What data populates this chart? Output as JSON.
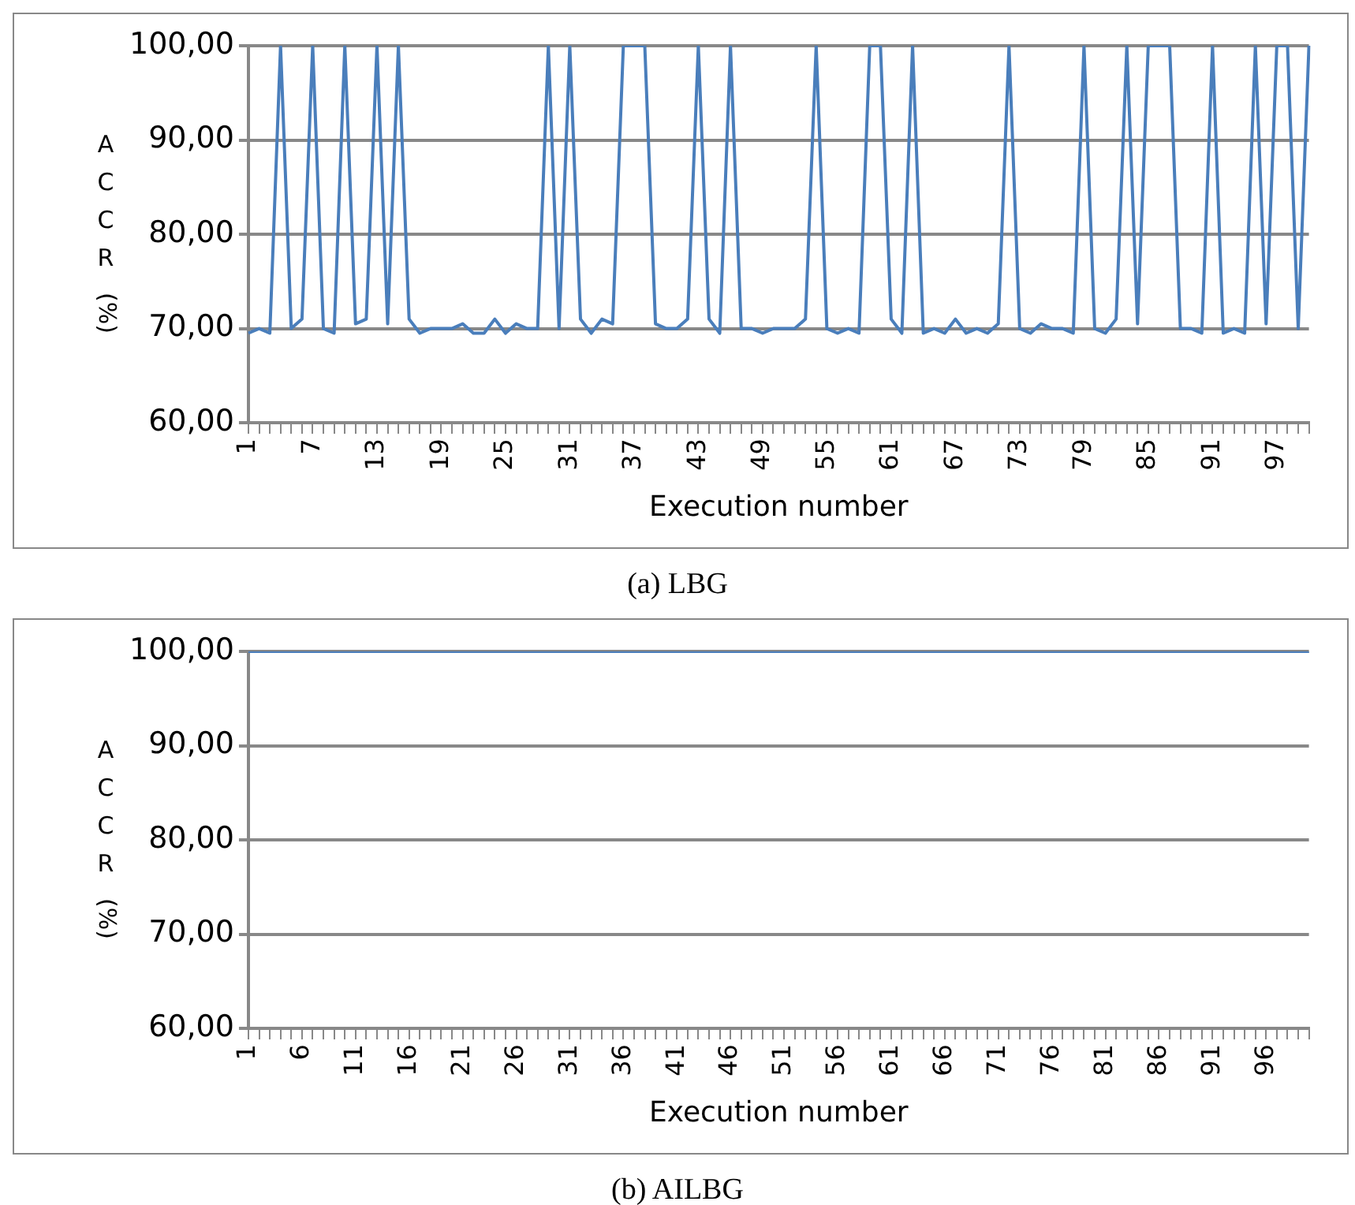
{
  "chart_data": [
    {
      "type": "line",
      "title": "(a)   LBG",
      "xlabel": "Execution number",
      "ylabel": "ACCR (%)",
      "categories": [
        "1",
        null,
        null,
        null,
        null,
        null,
        "7",
        null,
        null,
        null,
        null,
        null,
        "13",
        null,
        null,
        null,
        null,
        null,
        "19",
        null,
        null,
        null,
        null,
        null,
        "25",
        null,
        null,
        null,
        null,
        null,
        "31",
        null,
        null,
        null,
        null,
        null,
        "37",
        null,
        null,
        null,
        null,
        null,
        "43",
        null,
        null,
        null,
        null,
        null,
        "49",
        null,
        null,
        null,
        null,
        null,
        "55",
        null,
        null,
        null,
        null,
        null,
        "61",
        null,
        null,
        null,
        null,
        null,
        "67",
        null,
        null,
        null,
        null,
        null,
        "73",
        null,
        null,
        null,
        null,
        null,
        "79",
        null,
        null,
        null,
        null,
        null,
        "85",
        null,
        null,
        null,
        null,
        null,
        "91",
        null,
        null,
        null,
        null,
        null,
        "97",
        null,
        null,
        null
      ],
      "series": [
        {
          "color": "#4a7ebb",
          "values": [
            69.5,
            70,
            69.5,
            100,
            70,
            71,
            100,
            70,
            69.5,
            100,
            70.5,
            71,
            100,
            70.5,
            100,
            71,
            69.5,
            70,
            70,
            70,
            70.5,
            69.5,
            69.5,
            71,
            69.5,
            70.5,
            70,
            70,
            100,
            70,
            100,
            71,
            69.5,
            71,
            70.5,
            100,
            100,
            100,
            70.5,
            70,
            70,
            71,
            100,
            71,
            69.5,
            100,
            70,
            70,
            69.5,
            70,
            70,
            70,
            71,
            100,
            70,
            69.5,
            70,
            69.5,
            100,
            100,
            71,
            69.5,
            100,
            69.5,
            70,
            69.5,
            71,
            69.5,
            70,
            69.5,
            70.5,
            100,
            70,
            69.5,
            70.5,
            70,
            70,
            69.5,
            100,
            70,
            69.5,
            71,
            100,
            70.5,
            100,
            100,
            100,
            70,
            70,
            69.5,
            100,
            69.5,
            70,
            69.5,
            100,
            70.5,
            100,
            100,
            70,
            100
          ]
        }
      ],
      "ylim": [
        60,
        100
      ],
      "yticks": [
        {
          "value": 60,
          "label": "60,00"
        },
        {
          "value": 70,
          "label": "70,00"
        },
        {
          "value": 80,
          "label": "80,00"
        },
        {
          "value": 90,
          "label": "90,00"
        },
        {
          "value": 100,
          "label": "100,00"
        }
      ],
      "grid": "y",
      "marker": "none",
      "line_style": "solid"
    },
    {
      "type": "line",
      "title": "(b)   AILBG",
      "xlabel": "Execution number",
      "ylabel": "ACCR (%)",
      "categories": [
        "1",
        null,
        null,
        null,
        null,
        "6",
        null,
        null,
        null,
        null,
        "11",
        null,
        null,
        null,
        null,
        "16",
        null,
        null,
        null,
        null,
        "21",
        null,
        null,
        null,
        null,
        "26",
        null,
        null,
        null,
        null,
        "31",
        null,
        null,
        null,
        null,
        "36",
        null,
        null,
        null,
        null,
        "41",
        null,
        null,
        null,
        null,
        "46",
        null,
        null,
        null,
        null,
        "51",
        null,
        null,
        null,
        null,
        "56",
        null,
        null,
        null,
        null,
        "61",
        null,
        null,
        null,
        null,
        "66",
        null,
        null,
        null,
        null,
        "71",
        null,
        null,
        null,
        null,
        "76",
        null,
        null,
        null,
        null,
        "81",
        null,
        null,
        null,
        null,
        "86",
        null,
        null,
        null,
        null,
        "91",
        null,
        null,
        null,
        null,
        "96",
        null,
        null,
        null,
        null
      ],
      "series": [
        {
          "color": "#4a7ebb",
          "values": [
            100,
            100,
            100,
            100,
            100,
            100,
            100,
            100,
            100,
            100,
            100,
            100,
            100,
            100,
            100,
            100,
            100,
            100,
            100,
            100,
            100,
            100,
            100,
            100,
            100,
            100,
            100,
            100,
            100,
            100,
            100,
            100,
            100,
            100,
            100,
            100,
            100,
            100,
            100,
            100,
            100,
            100,
            100,
            100,
            100,
            100,
            100,
            100,
            100,
            100,
            100,
            100,
            100,
            100,
            100,
            100,
            100,
            100,
            100,
            100,
            100,
            100,
            100,
            100,
            100,
            100,
            100,
            100,
            100,
            100,
            100,
            100,
            100,
            100,
            100,
            100,
            100,
            100,
            100,
            100,
            100,
            100,
            100,
            100,
            100,
            100,
            100,
            100,
            100,
            100,
            100,
            100,
            100,
            100,
            100,
            100,
            100,
            100,
            100,
            100
          ]
        }
      ],
      "ylim": [
        60,
        100
      ],
      "yticks": [
        {
          "value": 60,
          "label": "60,00"
        },
        {
          "value": 70,
          "label": "70,00"
        },
        {
          "value": 80,
          "label": "80,00"
        },
        {
          "value": 90,
          "label": "90,00"
        },
        {
          "value": 100,
          "label": "100,00"
        }
      ],
      "grid": "y",
      "marker": "none",
      "line_style": "solid"
    }
  ]
}
